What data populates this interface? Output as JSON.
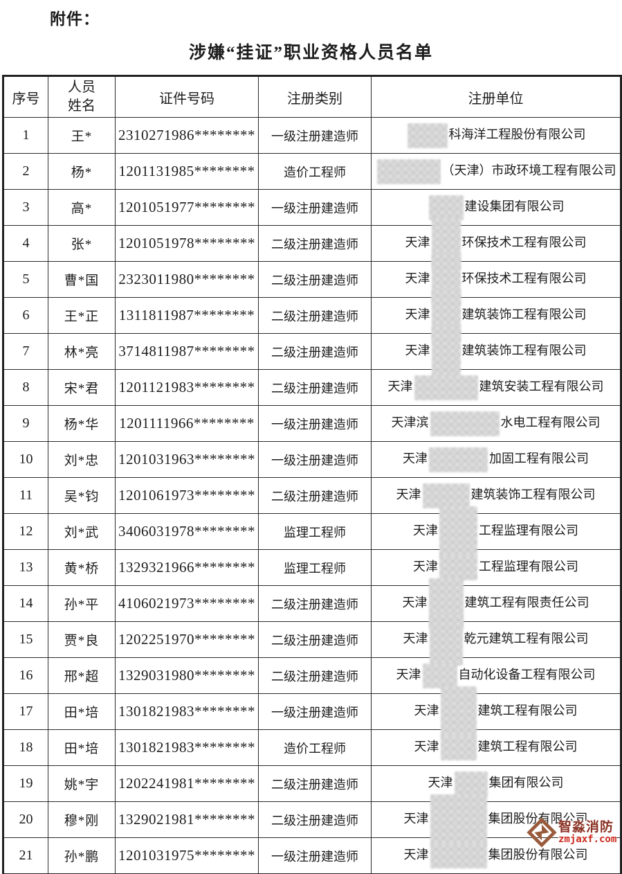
{
  "page": {
    "attachment_label": "附件：",
    "title": "涉嫌“挂证”职业资格人员名单"
  },
  "table": {
    "headers": {
      "no": "序号",
      "name": "人员姓名",
      "cert": "证件号码",
      "category": "注册类别",
      "unit": "注册单位"
    },
    "rows": [
      {
        "no": "1",
        "name": "王*",
        "cert": "2310271986********",
        "category": "一级注册建造师",
        "unit": {
          "prefix": "",
          "redacted_width": 58,
          "strip": false,
          "suffix": "科海洋工程股份有限公司"
        }
      },
      {
        "no": "2",
        "name": "杨*",
        "cert": "1201131985********",
        "category": "造价工程师",
        "unit": {
          "prefix": "",
          "redacted_width": 92,
          "strip": false,
          "suffix": "（天津）市政环境工程有限公司"
        }
      },
      {
        "no": "3",
        "name": "高*",
        "cert": "1201051977********",
        "category": "一级注册建造师",
        "unit": {
          "prefix": "",
          "redacted_width": 50,
          "strip": false,
          "suffix": "建设集团有限公司"
        }
      },
      {
        "no": "4",
        "name": "张*",
        "cert": "1201051978********",
        "category": "二级注册建造师",
        "unit": {
          "prefix": "天津",
          "redacted_width": 42,
          "strip": true,
          "suffix": "环保技术工程有限公司"
        }
      },
      {
        "no": "5",
        "name": "曹*国",
        "cert": "2323011980********",
        "category": "二级注册建造师",
        "unit": {
          "prefix": "天津",
          "redacted_width": 42,
          "strip": true,
          "suffix": "环保技术工程有限公司"
        }
      },
      {
        "no": "6",
        "name": "王*正",
        "cert": "1311811987********",
        "category": "二级注册建造师",
        "unit": {
          "prefix": "天津",
          "redacted_width": 42,
          "strip": true,
          "suffix": "建筑装饰工程有限公司"
        }
      },
      {
        "no": "7",
        "name": "林*亮",
        "cert": "3714811987********",
        "category": "二级注册建造师",
        "unit": {
          "prefix": "天津",
          "redacted_width": 42,
          "strip": true,
          "suffix": "建筑装饰工程有限公司"
        }
      },
      {
        "no": "8",
        "name": "宋*君",
        "cert": "1201121983********",
        "category": "二级注册建造师",
        "unit": {
          "prefix": "天津",
          "redacted_width": 92,
          "strip": false,
          "suffix": "建筑安装工程有限公司"
        }
      },
      {
        "no": "9",
        "name": "杨*华",
        "cert": "1201111966********",
        "category": "一级注册建造师",
        "unit": {
          "prefix": "天津滨",
          "redacted_width": 100,
          "strip": false,
          "suffix": "水电工程有限公司"
        }
      },
      {
        "no": "10",
        "name": "刘*忠",
        "cert": "1201031963********",
        "category": "一级注册建造师",
        "unit": {
          "prefix": "天津",
          "redacted_width": 85,
          "strip": false,
          "suffix": "加固工程有限公司"
        }
      },
      {
        "no": "11",
        "name": "吴*钧",
        "cert": "1201061973********",
        "category": "二级注册建造师",
        "unit": {
          "prefix": "天津",
          "redacted_width": 68,
          "strip": false,
          "suffix": "建筑装饰工程有限公司"
        }
      },
      {
        "no": "12",
        "name": "刘*武",
        "cert": "3406031978********",
        "category": "监理工程师",
        "unit": {
          "prefix": "天津",
          "redacted_width": 55,
          "strip": true,
          "suffix": "工程监理有限公司"
        }
      },
      {
        "no": "13",
        "name": "黄*桥",
        "cert": "1329321966********",
        "category": "监理工程师",
        "unit": {
          "prefix": "天津",
          "redacted_width": 55,
          "strip": false,
          "suffix": "工程监理有限公司"
        }
      },
      {
        "no": "14",
        "name": "孙*平",
        "cert": "4106021973********",
        "category": "二级注册建造师",
        "unit": {
          "prefix": "天津",
          "redacted_width": 50,
          "strip": true,
          "suffix": "建筑工程有限责任公司"
        }
      },
      {
        "no": "15",
        "name": "贾*良",
        "cert": "1202251970********",
        "category": "二级注册建造师",
        "unit": {
          "prefix": "天津",
          "redacted_width": 48,
          "strip": true,
          "suffix": "乾元建筑工程有限公司"
        }
      },
      {
        "no": "16",
        "name": "邢*超",
        "cert": "1329031980********",
        "category": "二级注册建造师",
        "unit": {
          "prefix": "天津",
          "redacted_width": 50,
          "strip": false,
          "suffix": "自动化设备工程有限公司"
        }
      },
      {
        "no": "17",
        "name": "田*培",
        "cert": "1301821983********",
        "category": "一级注册建造师",
        "unit": {
          "prefix": "天津",
          "redacted_width": 52,
          "strip": true,
          "suffix": "建筑工程有限公司"
        }
      },
      {
        "no": "18",
        "name": "田*培",
        "cert": "1301821983********",
        "category": "造价工程师",
        "unit": {
          "prefix": "天津",
          "redacted_width": 52,
          "strip": false,
          "suffix": "建筑工程有限公司"
        }
      },
      {
        "no": "19",
        "name": "姚*宇",
        "cert": "1202241981********",
        "category": "二级注册建造师",
        "unit": {
          "prefix": "天津",
          "redacted_width": 48,
          "strip": false,
          "suffix": "集团有限公司"
        }
      },
      {
        "no": "20",
        "name": "穆*刚",
        "cert": "1329021981********",
        "category": "二级注册建造师",
        "unit": {
          "prefix": "天津",
          "redacted_width": 82,
          "strip": true,
          "suffix": "集团股份有限公司"
        }
      },
      {
        "no": "21",
        "name": "孙*鹏",
        "cert": "1201031975********",
        "category": "一级注册建造师",
        "unit": {
          "prefix": "天津",
          "redacted_width": 82,
          "strip": false,
          "suffix": "集团股份有限公司"
        }
      }
    ]
  },
  "watermark": {
    "brand": "智淼消防",
    "domain": "zmjaxf.com",
    "brand_color": "#8b3124",
    "domain_color": "#cc2a1e",
    "logo_color": "#9a5b3c"
  },
  "colors": {
    "text": "#1c1c1c",
    "border": "#2a2a2a",
    "redaction": "#d6d6d6"
  }
}
